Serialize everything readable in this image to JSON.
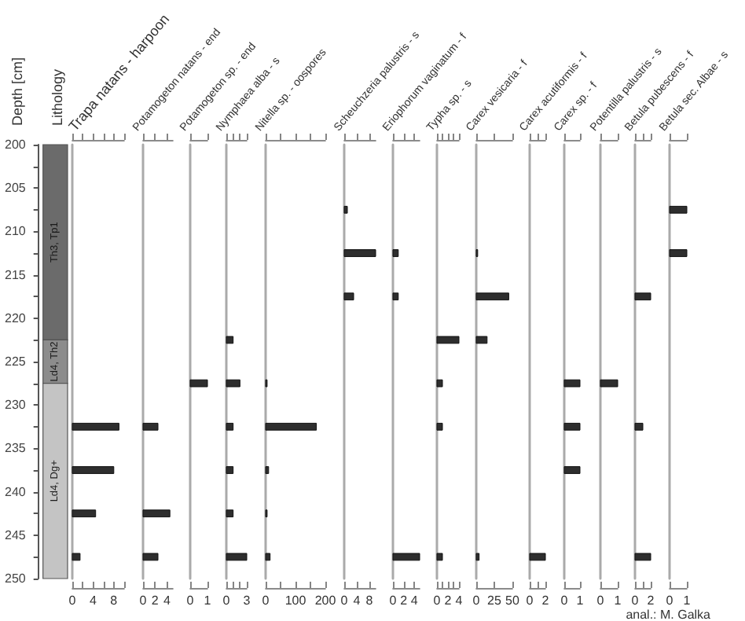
{
  "chart_data": [
    {
      "type": "bar",
      "categories": [
        null
      ],
      "ylabel": "Depth [cm]",
      "title": "Lithology",
      "ylim": [
        250,
        200
      ],
      "yticks": [
        200,
        {
          "value": 202.5,
          "label": null
        },
        205,
        {
          "value": 207.5,
          "label": null
        },
        210,
        {
          "value": 212.5,
          "label": null
        },
        215,
        {
          "value": 217.5,
          "label": null
        },
        220,
        {
          "value": 222.5,
          "label": null
        },
        225,
        {
          "value": 227.5,
          "label": null
        },
        230,
        {
          "value": 232.5,
          "label": null
        },
        235,
        {
          "value": 237.5,
          "label": null
        },
        240,
        {
          "value": 242.5,
          "label": null
        },
        245,
        {
          "value": 247.5,
          "label": null
        },
        250
      ],
      "series": [
        {
          "name": "Th3, Tp1",
          "color": "#6b6b6b",
          "base": [
            200
          ],
          "values": [
            22.5
          ]
        },
        {
          "name": "Ld4, Th2",
          "color": "#8c8c8c",
          "base": [
            222.5
          ],
          "values": [
            5
          ]
        },
        {
          "name": "Ld4, Dg+",
          "color": "#c4c4c4",
          "base": [
            227.5
          ],
          "values": [
            22.5
          ]
        }
      ],
      "annotations": [
        "anal.: M. Galka"
      ]
    },
    {
      "type": "bar",
      "orientation": "horizontal",
      "title": "Trapa natans - harpoon",
      "x": [
        232.5,
        237.5,
        242.5,
        247.5
      ],
      "values": [
        9,
        8,
        4.5,
        1.5
      ],
      "color": "#2e2e2e",
      "xlim": [
        0,
        10
      ],
      "xticks": [
        0,
        {
          "value": 2,
          "label": null
        },
        4,
        {
          "value": 6,
          "label": null
        },
        8,
        {
          "value": 10,
          "label": null
        }
      ],
      "ylim": [
        250,
        200
      ],
      "tick_labels": "x"
    },
    {
      "type": "bar",
      "orientation": "horizontal",
      "title": "Potamogeton natans - end",
      "x": [
        232.5,
        242.5,
        247.5
      ],
      "values": [
        2.5,
        4.5,
        2.5
      ],
      "color": "#2e2e2e",
      "xlim": [
        0,
        5
      ],
      "xticks": [
        0,
        2,
        4
      ],
      "ylim": [
        250,
        200
      ],
      "tick_labels": "x"
    },
    {
      "type": "bar",
      "orientation": "horizontal",
      "title": "Potamogeton sp. - end",
      "x": [
        227.5
      ],
      "values": [
        1
      ],
      "color": "#2e2e2e",
      "xlim": [
        0,
        1
      ],
      "xticks": [
        0,
        1
      ],
      "ylim": [
        250,
        200
      ],
      "tick_labels": "x"
    },
    {
      "type": "bar",
      "orientation": "horizontal",
      "title": "Nymphaea alba - s",
      "x": [
        222.5,
        227.5,
        232.5,
        237.5,
        242.5,
        247.5
      ],
      "values": [
        1,
        2,
        1,
        1,
        1,
        3
      ],
      "color": "#2e2e2e",
      "xlim": [
        0,
        3
      ],
      "xticks": [
        0,
        {
          "value": 1,
          "label": null
        },
        {
          "value": 2,
          "label": null
        },
        3
      ],
      "ylim": [
        250,
        200
      ],
      "tick_labels": "x"
    },
    {
      "type": "bar",
      "orientation": "horizontal",
      "title": "Nitella sp. - oospores",
      "x": [
        227.5,
        232.5,
        237.5,
        242.5,
        247.5
      ],
      "values": [
        5,
        170,
        10,
        5,
        15
      ],
      "color": "#2e2e2e",
      "xlim": [
        0,
        200
      ],
      "xticks": [
        0,
        {
          "value": 50,
          "label": null
        },
        100,
        {
          "value": 150,
          "label": null
        },
        200
      ],
      "ylim": [
        250,
        200
      ],
      "tick_labels": "x"
    },
    {
      "type": "bar",
      "orientation": "horizontal",
      "title": "Scheuchzeria palustris - s",
      "x": [
        207.5,
        212.5,
        217.5
      ],
      "values": [
        1,
        10,
        3
      ],
      "color": "#2e2e2e",
      "xlim": [
        0,
        10
      ],
      "xticks": [
        0,
        4,
        8
      ],
      "ylim": [
        250,
        200
      ],
      "tick_labels": "x"
    },
    {
      "type": "bar",
      "orientation": "horizontal",
      "title": "Eriophorum vaginatum - f",
      "x": [
        212.5,
        217.5,
        247.5
      ],
      "values": [
        1,
        1,
        5
      ],
      "color": "#2e2e2e",
      "xlim": [
        0,
        5
      ],
      "xticks": [
        0,
        2,
        4
      ],
      "ylim": [
        250,
        200
      ],
      "tick_labels": "x"
    },
    {
      "type": "bar",
      "orientation": "horizontal",
      "title": "Typha sp. - s",
      "x": [
        222.5,
        227.5,
        232.5,
        247.5
      ],
      "values": [
        4,
        1,
        1,
        1
      ],
      "color": "#2e2e2e",
      "xlim": [
        0,
        4
      ],
      "xticks": [
        0,
        {
          "value": 1,
          "label": null
        },
        2,
        {
          "value": 3,
          "label": null
        },
        4
      ],
      "ylim": [
        250,
        200
      ],
      "tick_labels": "x"
    },
    {
      "type": "bar",
      "orientation": "horizontal",
      "title": "Carex vesicaria - f",
      "x": [
        212.5,
        217.5,
        222.5,
        247.5
      ],
      "values": [
        2,
        45,
        15,
        4
      ],
      "color": "#2e2e2e",
      "xlim": [
        0,
        50
      ],
      "xticks": [
        0,
        25,
        50
      ],
      "ylim": [
        250,
        200
      ],
      "tick_labels": "x"
    },
    {
      "type": "bar",
      "orientation": "horizontal",
      "title": "Carex acutiformis - f",
      "x": [
        247.5
      ],
      "values": [
        2
      ],
      "color": "#2e2e2e",
      "xlim": [
        0,
        2
      ],
      "xticks": [
        0,
        {
          "value": 1,
          "label": null
        },
        2
      ],
      "ylim": [
        250,
        200
      ],
      "tick_labels": "x"
    },
    {
      "type": "bar",
      "orientation": "horizontal",
      "title": "Carex sp. - f",
      "x": [
        227.5,
        232.5,
        237.5
      ],
      "values": [
        1,
        1,
        1
      ],
      "color": "#2e2e2e",
      "xlim": [
        0,
        1
      ],
      "xticks": [
        0,
        1
      ],
      "ylim": [
        250,
        200
      ],
      "tick_labels": "x"
    },
    {
      "type": "bar",
      "orientation": "horizontal",
      "title": "Potentilla palustris - s",
      "x": [
        227.5
      ],
      "values": [
        1
      ],
      "color": "#2e2e2e",
      "xlim": [
        0,
        1
      ],
      "xticks": [
        0,
        1
      ],
      "ylim": [
        250,
        200
      ],
      "tick_labels": "x"
    },
    {
      "type": "bar",
      "orientation": "horizontal",
      "title": "Betula pubescens - f",
      "x": [
        217.5,
        232.5,
        247.5
      ],
      "values": [
        2,
        1,
        2
      ],
      "color": "#2e2e2e",
      "xlim": [
        0,
        2
      ],
      "xticks": [
        0,
        {
          "value": 1,
          "label": null
        },
        2
      ],
      "ylim": [
        250,
        200
      ],
      "tick_labels": "x"
    },
    {
      "type": "bar",
      "orientation": "horizontal",
      "title": "Betula sec. Albae - s",
      "x": [
        207.5,
        212.5
      ],
      "values": [
        1,
        1
      ],
      "color": "#2e2e2e",
      "xlim": [
        0,
        1
      ],
      "xticks": [
        0,
        1
      ],
      "ylim": [
        250,
        200
      ],
      "tick_labels": "x"
    }
  ]
}
